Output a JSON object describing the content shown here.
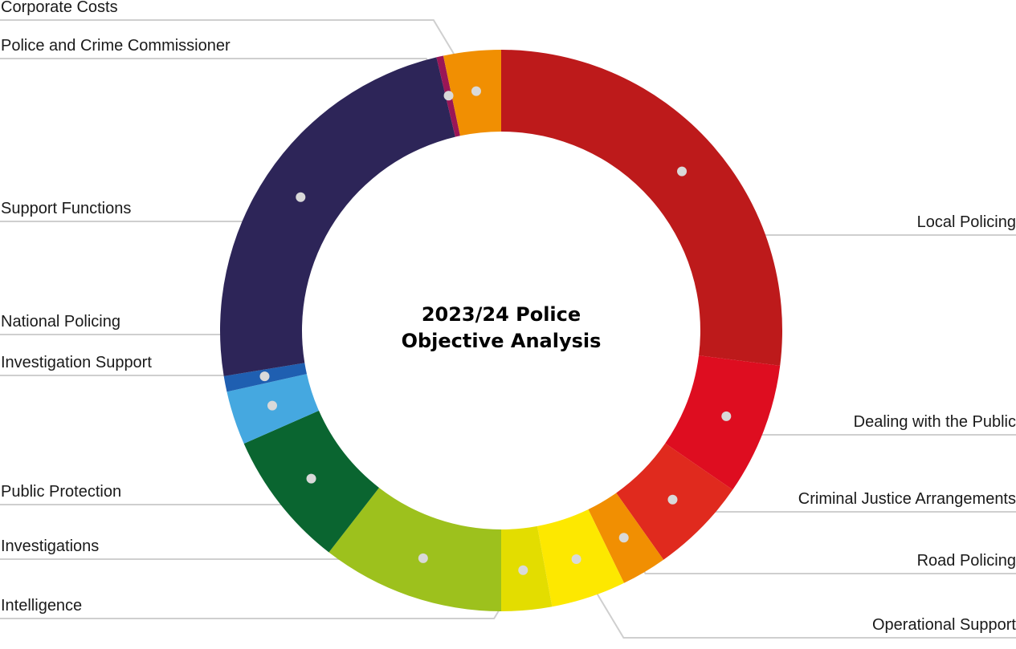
{
  "chart_data": {
    "type": "pie",
    "variant": "donut",
    "title_lines": [
      "2023/24 Police",
      "Objective Analysis"
    ],
    "legend": "none",
    "slices": [
      {
        "label": "Local Policing",
        "value": 27.0,
        "color": "#bd1a1b"
      },
      {
        "label": "Dealing with the Public",
        "value": 7.6,
        "color": "#de0d20"
      },
      {
        "label": "Criminal Justice Arrangements",
        "value": 5.6,
        "color": "#e02a1e"
      },
      {
        "label": "Road Policing",
        "value": 2.6,
        "color": "#f18f02"
      },
      {
        "label": "Operational Support",
        "value": 4.3,
        "color": "#fde800"
      },
      {
        "label": "Intelligence",
        "value": 2.9,
        "color": "#e3dd00"
      },
      {
        "label": "Investigations",
        "value": 10.5,
        "color": "#9dc11d"
      },
      {
        "label": "Public Protection",
        "value": 7.9,
        "color": "#0a6530"
      },
      {
        "label": "Investigation Support",
        "value": 3.1,
        "color": "#45a8e0"
      },
      {
        "label": "National Policing",
        "value": 0.9,
        "color": "#1f5fb1"
      },
      {
        "label": "Support Functions",
        "value": 23.9,
        "color": "#2d2558"
      },
      {
        "label": "Police and Crime Commissioner",
        "value": 0.4,
        "color": "#9a1656"
      },
      {
        "label": "Corporate Costs",
        "value": 3.3,
        "color": "#f18f02"
      }
    ]
  }
}
